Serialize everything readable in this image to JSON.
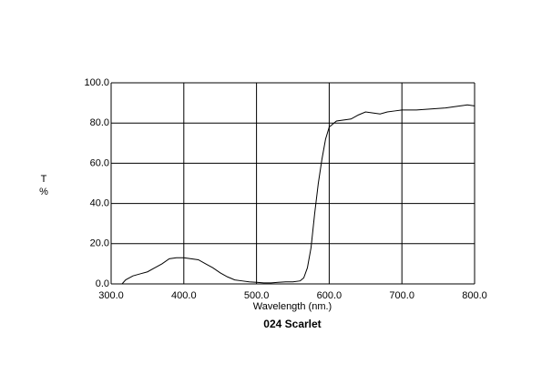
{
  "chart_data": {
    "type": "line",
    "title": "024 Scarlet",
    "xlabel": "Wavelength (nm.)",
    "ylabel": [
      "T",
      "%"
    ],
    "x": [
      315,
      320,
      330,
      340,
      350,
      360,
      370,
      380,
      390,
      400,
      410,
      420,
      430,
      440,
      450,
      460,
      470,
      480,
      490,
      500,
      510,
      520,
      530,
      540,
      550,
      560,
      565,
      570,
      575,
      580,
      585,
      590,
      595,
      600,
      610,
      620,
      630,
      640,
      650,
      660,
      670,
      680,
      690,
      700,
      720,
      740,
      760,
      780,
      790,
      800
    ],
    "values": [
      0,
      2,
      4,
      5,
      6,
      8,
      10,
      12.5,
      13,
      13,
      12.5,
      12,
      10,
      8,
      5.5,
      3.5,
      2,
      1.5,
      1,
      0.8,
      0.5,
      0.5,
      0.8,
      1,
      1,
      1.5,
      3,
      8,
      18,
      35,
      50,
      62,
      72,
      78,
      81,
      81.5,
      82,
      84,
      85.5,
      85,
      84.5,
      85.5,
      86,
      86.5,
      86.5,
      87,
      87.5,
      88.5,
      89,
      88.5
    ],
    "color": "#000000",
    "xlim": [
      300,
      800
    ],
    "ylim": [
      0,
      100
    ],
    "xticks": [
      {
        "value": 300,
        "label": "300.0"
      },
      {
        "value": 400,
        "label": "400.0"
      },
      {
        "value": 500,
        "label": "500.0"
      },
      {
        "value": 600,
        "label": "600.0"
      },
      {
        "value": 700,
        "label": "700.0"
      },
      {
        "value": 800,
        "label": "800.0"
      }
    ],
    "yticks": [
      {
        "value": 0,
        "label": "0.0"
      },
      {
        "value": 20,
        "label": "20.0"
      },
      {
        "value": 40,
        "label": "40.0"
      },
      {
        "value": 60,
        "label": "60.0"
      },
      {
        "value": 80,
        "label": "80.0"
      },
      {
        "value": 100,
        "label": "100.0"
      }
    ],
    "grid": true
  }
}
